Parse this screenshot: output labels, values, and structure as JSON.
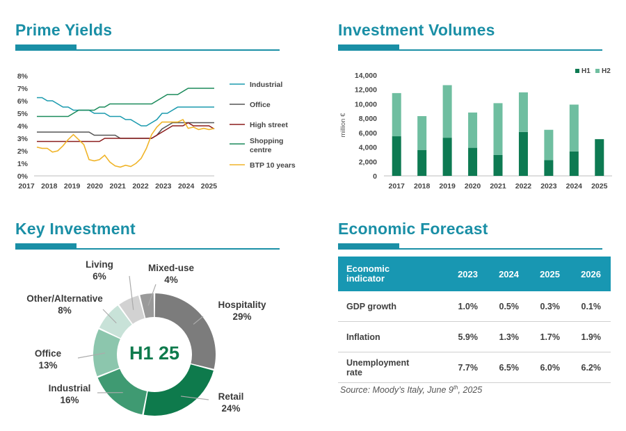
{
  "panels": {
    "prime_yields": "Prime Yields",
    "investment_volumes": "Investment Volumes",
    "key_investment": "Key Investment",
    "economic_forecast": "Economic Forecast"
  },
  "colors": {
    "accent": "#1a8fa6",
    "industrial": "#1a9aae",
    "office": "#555555",
    "high_street": "#8b1c1c",
    "shopping_centre": "#1a8a5a",
    "btp": "#f0b428",
    "h1": "#0d7a52",
    "h2": "#6fbea0"
  },
  "chart_data": [
    {
      "type": "line",
      "title": "Prime Yields",
      "x": [
        2017,
        2017.25,
        2017.5,
        2017.75,
        2018,
        2018.25,
        2018.5,
        2018.75,
        2019,
        2019.25,
        2019.5,
        2019.75,
        2020,
        2020.25,
        2020.5,
        2020.75,
        2021,
        2021.25,
        2021.5,
        2021.75,
        2022,
        2022.25,
        2022.5,
        2022.75,
        2023,
        2023.25,
        2023.5,
        2023.75,
        2024,
        2024.25,
        2024.5,
        2024.75,
        2025,
        2025.25,
        2025.5
      ],
      "x_ticks": [
        "2017",
        "2018",
        "2019",
        "2020",
        "2021",
        "2022",
        "2023",
        "2024",
        "2025"
      ],
      "y_ticks": [
        "0%",
        "1%",
        "2%",
        "3%",
        "4%",
        "5%",
        "6%",
        "7%",
        "8%"
      ],
      "ylim": [
        0,
        8
      ],
      "series": [
        {
          "name": "Industrial",
          "values": [
            6.25,
            6.25,
            6.0,
            6.0,
            5.75,
            5.5,
            5.5,
            5.25,
            5.25,
            5.25,
            5.25,
            5.0,
            5.0,
            5.0,
            4.75,
            4.75,
            4.75,
            4.5,
            4.5,
            4.25,
            4.0,
            4.0,
            4.25,
            4.5,
            5.0,
            5.0,
            5.25,
            5.5,
            5.5,
            5.5,
            5.5,
            5.5,
            5.5,
            5.5,
            5.5
          ]
        },
        {
          "name": "Office",
          "values": [
            3.5,
            3.5,
            3.5,
            3.5,
            3.5,
            3.5,
            3.5,
            3.5,
            3.5,
            3.5,
            3.5,
            3.25,
            3.25,
            3.25,
            3.25,
            3.25,
            3.0,
            3.0,
            3.0,
            3.0,
            3.0,
            3.0,
            3.0,
            3.25,
            3.75,
            4.0,
            4.25,
            4.25,
            4.25,
            4.25,
            4.25,
            4.25,
            4.25,
            4.25,
            4.25
          ]
        },
        {
          "name": "High street",
          "values": [
            2.75,
            2.75,
            2.75,
            2.75,
            2.75,
            2.75,
            2.75,
            2.75,
            2.75,
            2.75,
            2.75,
            2.75,
            2.75,
            3.0,
            3.0,
            3.0,
            3.0,
            3.0,
            3.0,
            3.0,
            3.0,
            3.0,
            3.0,
            3.25,
            3.5,
            3.75,
            4.0,
            4.0,
            4.0,
            4.25,
            4.0,
            4.0,
            4.0,
            4.0,
            3.75
          ]
        },
        {
          "name": "Shopping centre",
          "values": [
            4.75,
            4.75,
            4.75,
            4.75,
            4.75,
            4.75,
            4.75,
            5.0,
            5.25,
            5.25,
            5.25,
            5.25,
            5.5,
            5.5,
            5.75,
            5.75,
            5.75,
            5.75,
            5.75,
            5.75,
            5.75,
            5.75,
            5.75,
            6.0,
            6.25,
            6.5,
            6.5,
            6.5,
            6.75,
            7.0,
            7.0,
            7.0,
            7.0,
            7.0,
            7.0
          ]
        },
        {
          "name": "BTP 10 years",
          "values": [
            2.3,
            2.2,
            2.2,
            1.9,
            2.0,
            2.4,
            2.9,
            3.3,
            2.9,
            2.5,
            1.3,
            1.2,
            1.3,
            1.65,
            1.1,
            0.8,
            0.7,
            0.85,
            0.75,
            1.0,
            1.4,
            2.2,
            3.3,
            3.9,
            4.3,
            4.3,
            4.3,
            4.3,
            4.5,
            3.8,
            3.9,
            3.7,
            3.8,
            3.7,
            3.8
          ]
        }
      ]
    },
    {
      "type": "bar",
      "title": "Investment Volumes",
      "categories": [
        "2017",
        "2018",
        "2019",
        "2020",
        "2021",
        "2022",
        "2023",
        "2024",
        "2025"
      ],
      "ylabel": "million €",
      "ylim": [
        0,
        14000
      ],
      "y_ticks": [
        "0",
        "2,000",
        "4,000",
        "6,000",
        "8,000",
        "10,000",
        "12,000",
        "14,000"
      ],
      "series": [
        {
          "name": "H1",
          "values": [
            5500,
            3600,
            5300,
            3900,
            2900,
            6100,
            2200,
            3400,
            5100
          ]
        },
        {
          "name": "H2",
          "values": [
            6000,
            4700,
            7300,
            4900,
            7200,
            5500,
            4200,
            6500,
            0
          ]
        }
      ]
    },
    {
      "type": "pie",
      "title": "Key Investment",
      "center_label": "H1 25",
      "slices": [
        {
          "label": "Hospitality",
          "pct_label": "29%",
          "value": 29,
          "color": "#7c7c7c"
        },
        {
          "label": "Retail",
          "pct_label": "24%",
          "value": 24,
          "color": "#0e7a4c"
        },
        {
          "label": "Industrial",
          "pct_label": "16%",
          "value": 16,
          "color": "#3f9a72"
        },
        {
          "label": "Office",
          "pct_label": "13%",
          "value": 13,
          "color": "#8cc6ad"
        },
        {
          "label": "Other/Alternative",
          "pct_label": "8%",
          "value": 8,
          "color": "#c8e2d8"
        },
        {
          "label": "Living",
          "pct_label": "6%",
          "value": 6,
          "color": "#d2d2d2"
        },
        {
          "label": "Mixed-use",
          "pct_label": "4%",
          "value": 4,
          "color": "#9a9a9a"
        }
      ]
    },
    {
      "type": "table",
      "title": "Economic Forecast",
      "columns": [
        "Economic indicator",
        "2023",
        "2024",
        "2025",
        "2026"
      ],
      "rows": [
        [
          "GDP growth",
          "1.0%",
          "0.5%",
          "0.3%",
          "0.1%"
        ],
        [
          "Inflation",
          "5.9%",
          "1.3%",
          "1.7%",
          "1.9%"
        ],
        [
          "Unemployment rate",
          "7.7%",
          "6.5%",
          "6.0%",
          "6.2%"
        ]
      ],
      "source": "Source: Moody’s Italy, June 9",
      "source_sup": "th",
      "source_tail": ", 2025"
    }
  ]
}
